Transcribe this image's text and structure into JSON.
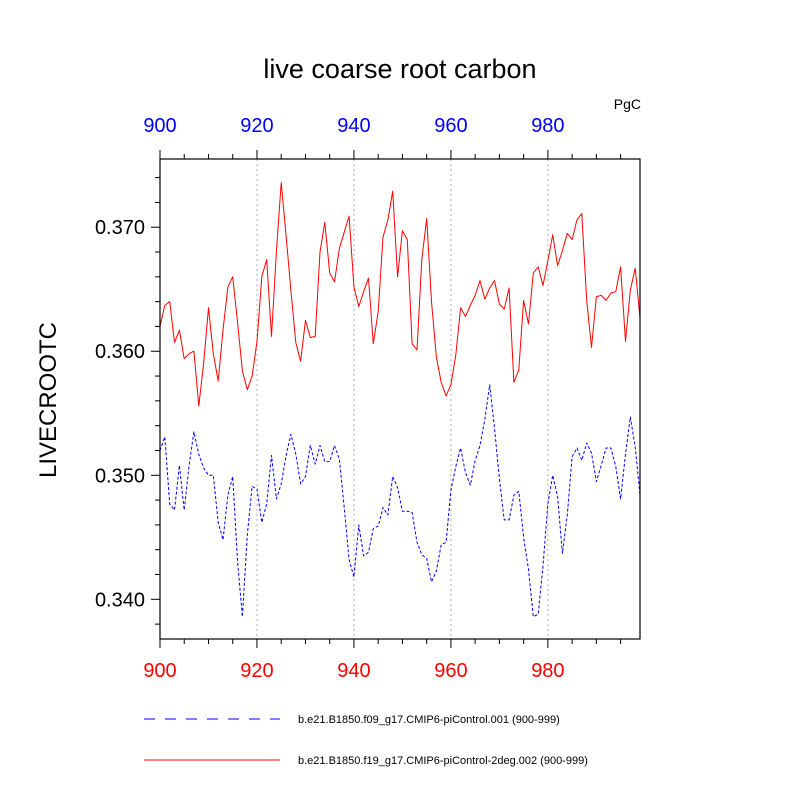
{
  "chart_data": {
    "type": "line",
    "title": "live coarse root carbon",
    "units": "PgC",
    "ylabel": "LIVECROOTC",
    "xlabel": "",
    "xlim": [
      900,
      999
    ],
    "ylim": [
      0.3368,
      0.3755
    ],
    "x_ticks": [
      900,
      920,
      940,
      960,
      980
    ],
    "x_tick_labels": [
      "900",
      "920",
      "940",
      "960",
      "980"
    ],
    "y_ticks": [
      0.34,
      0.35,
      0.36,
      0.37
    ],
    "y_tick_labels": [
      "0.340",
      "0.350",
      "0.360",
      "0.370"
    ],
    "colors": {
      "bottom_axis_labels": "#ff0000",
      "top_axis_labels": "#0000ff"
    },
    "series": [
      {
        "name": "b.e21.B1850.f09_g17.CMIP6-piControl.001 (900-999)",
        "color": "#0000ff",
        "dash": "dashed",
        "x_start": 900,
        "values": [
          0.352,
          0.3531,
          0.3477,
          0.3472,
          0.3508,
          0.3472,
          0.3508,
          0.3535,
          0.3517,
          0.3506,
          0.35,
          0.35,
          0.3462,
          0.3448,
          0.3484,
          0.3499,
          0.343,
          0.3386,
          0.3452,
          0.3491,
          0.3489,
          0.3462,
          0.3477,
          0.3516,
          0.3481,
          0.3493,
          0.3516,
          0.3533,
          0.3517,
          0.3493,
          0.3499,
          0.3524,
          0.3509,
          0.3524,
          0.3511,
          0.3511,
          0.3524,
          0.3513,
          0.3474,
          0.3432,
          0.3418,
          0.346,
          0.3435,
          0.3438,
          0.3457,
          0.3459,
          0.3474,
          0.3468,
          0.3499,
          0.349,
          0.3471,
          0.3471,
          0.347,
          0.3446,
          0.3436,
          0.3433,
          0.3414,
          0.3423,
          0.3444,
          0.3446,
          0.3488,
          0.3507,
          0.3522,
          0.3502,
          0.3492,
          0.3512,
          0.3524,
          0.3545,
          0.3573,
          0.3538,
          0.3497,
          0.3464,
          0.3464,
          0.3484,
          0.3487,
          0.345,
          0.3424,
          0.3386,
          0.3388,
          0.3427,
          0.3477,
          0.35,
          0.3483,
          0.3437,
          0.3468,
          0.3515,
          0.3522,
          0.3512,
          0.3526,
          0.3518,
          0.3495,
          0.3508,
          0.3522,
          0.3522,
          0.3507,
          0.3481,
          0.3517,
          0.3547,
          0.3523,
          0.3484
        ]
      },
      {
        "name": "b.e21.B1850.f19_g17.CMIP6-piControl-2deg.002 (900-999)",
        "color": "#ff0000",
        "dash": "solid",
        "x_start": 900,
        "values": [
          0.362,
          0.3637,
          0.364,
          0.3607,
          0.3617,
          0.3594,
          0.3598,
          0.36,
          0.3556,
          0.359,
          0.3635,
          0.3598,
          0.3576,
          0.3617,
          0.3652,
          0.366,
          0.3623,
          0.3584,
          0.3569,
          0.358,
          0.3608,
          0.366,
          0.3674,
          0.3612,
          0.368,
          0.3736,
          0.3693,
          0.3649,
          0.3607,
          0.3592,
          0.3625,
          0.3611,
          0.3612,
          0.368,
          0.3704,
          0.3663,
          0.3656,
          0.3683,
          0.3696,
          0.3709,
          0.3652,
          0.3636,
          0.3648,
          0.3659,
          0.3606,
          0.3632,
          0.3692,
          0.3706,
          0.3729,
          0.366,
          0.3697,
          0.369,
          0.3606,
          0.3601,
          0.3674,
          0.3707,
          0.364,
          0.3595,
          0.3575,
          0.3564,
          0.3573,
          0.3597,
          0.3635,
          0.3628,
          0.3637,
          0.3645,
          0.3657,
          0.3642,
          0.3651,
          0.3657,
          0.3638,
          0.3634,
          0.3651,
          0.3575,
          0.3585,
          0.3641,
          0.3622,
          0.3663,
          0.3668,
          0.3653,
          0.3673,
          0.3694,
          0.3669,
          0.3681,
          0.3695,
          0.369,
          0.3706,
          0.3711,
          0.3641,
          0.3603,
          0.3644,
          0.3645,
          0.3641,
          0.3647,
          0.3648,
          0.3668,
          0.3608,
          0.3649,
          0.3667,
          0.3627
        ]
      }
    ],
    "legend": {
      "placement": "bottom",
      "entries": [
        "b.e21.B1850.f09_g17.CMIP6-piControl.001 (900-999)",
        "b.e21.B1850.f19_g17.CMIP6-piControl-2deg.002 (900-999)"
      ]
    }
  }
}
